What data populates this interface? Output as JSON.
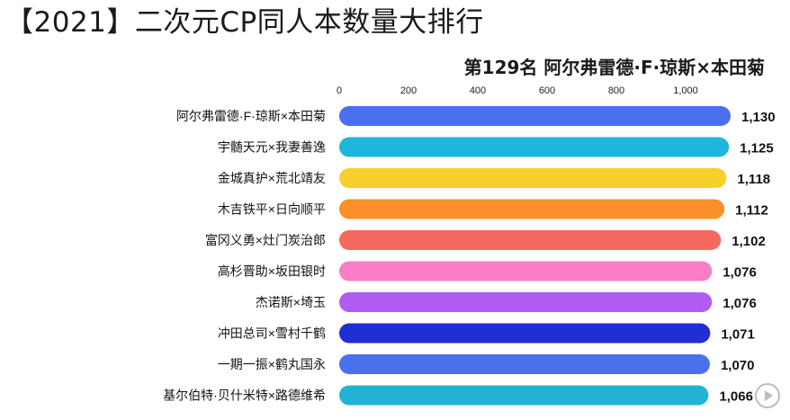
{
  "header": {
    "title": "【2021】二次元CP同人本数量大排行",
    "rank_caption": "第129名 阿尔弗雷德·F·琼斯×本田菊"
  },
  "chart_data": {
    "type": "bar",
    "orientation": "horizontal",
    "title": "",
    "xlabel": "",
    "ylabel": "",
    "xlim": [
      0,
      1100
    ],
    "x_ticks": [
      0,
      200,
      400,
      600,
      800,
      1000
    ],
    "x_tick_labels": [
      "0",
      "200",
      "400",
      "600",
      "800",
      "1,000"
    ],
    "grid": false,
    "categories": [
      "阿尔弗雷德·F·琼斯×本田菊",
      "宇髄天元×我妻善逸",
      "金城真护×荒北靖友",
      "木吉铁平×日向顺平",
      "富冈义勇×灶门炭治郎",
      "高杉晋助×坂田银时",
      "杰诺斯×埼玉",
      "冲田总司×雪村千鹤",
      "一期一振×鹤丸国永",
      "基尔伯特·贝什米特×路德维希"
    ],
    "values": [
      1130,
      1125,
      1118,
      1112,
      1102,
      1076,
      1076,
      1071,
      1070,
      1066
    ],
    "value_labels": [
      "1,130",
      "1,125",
      "1,118",
      "1,112",
      "1,102",
      "1,076",
      "1,076",
      "1,071",
      "1,070",
      "1,066"
    ],
    "colors": [
      "#4a6ff0",
      "#1fb6dc",
      "#f7d02c",
      "#fb8f28",
      "#f56a5e",
      "#f97ec6",
      "#b15cf2",
      "#1f2fd1",
      "#4a70ee",
      "#22b3d4"
    ]
  },
  "overlay": {
    "play_icon": "play-circle-icon"
  }
}
